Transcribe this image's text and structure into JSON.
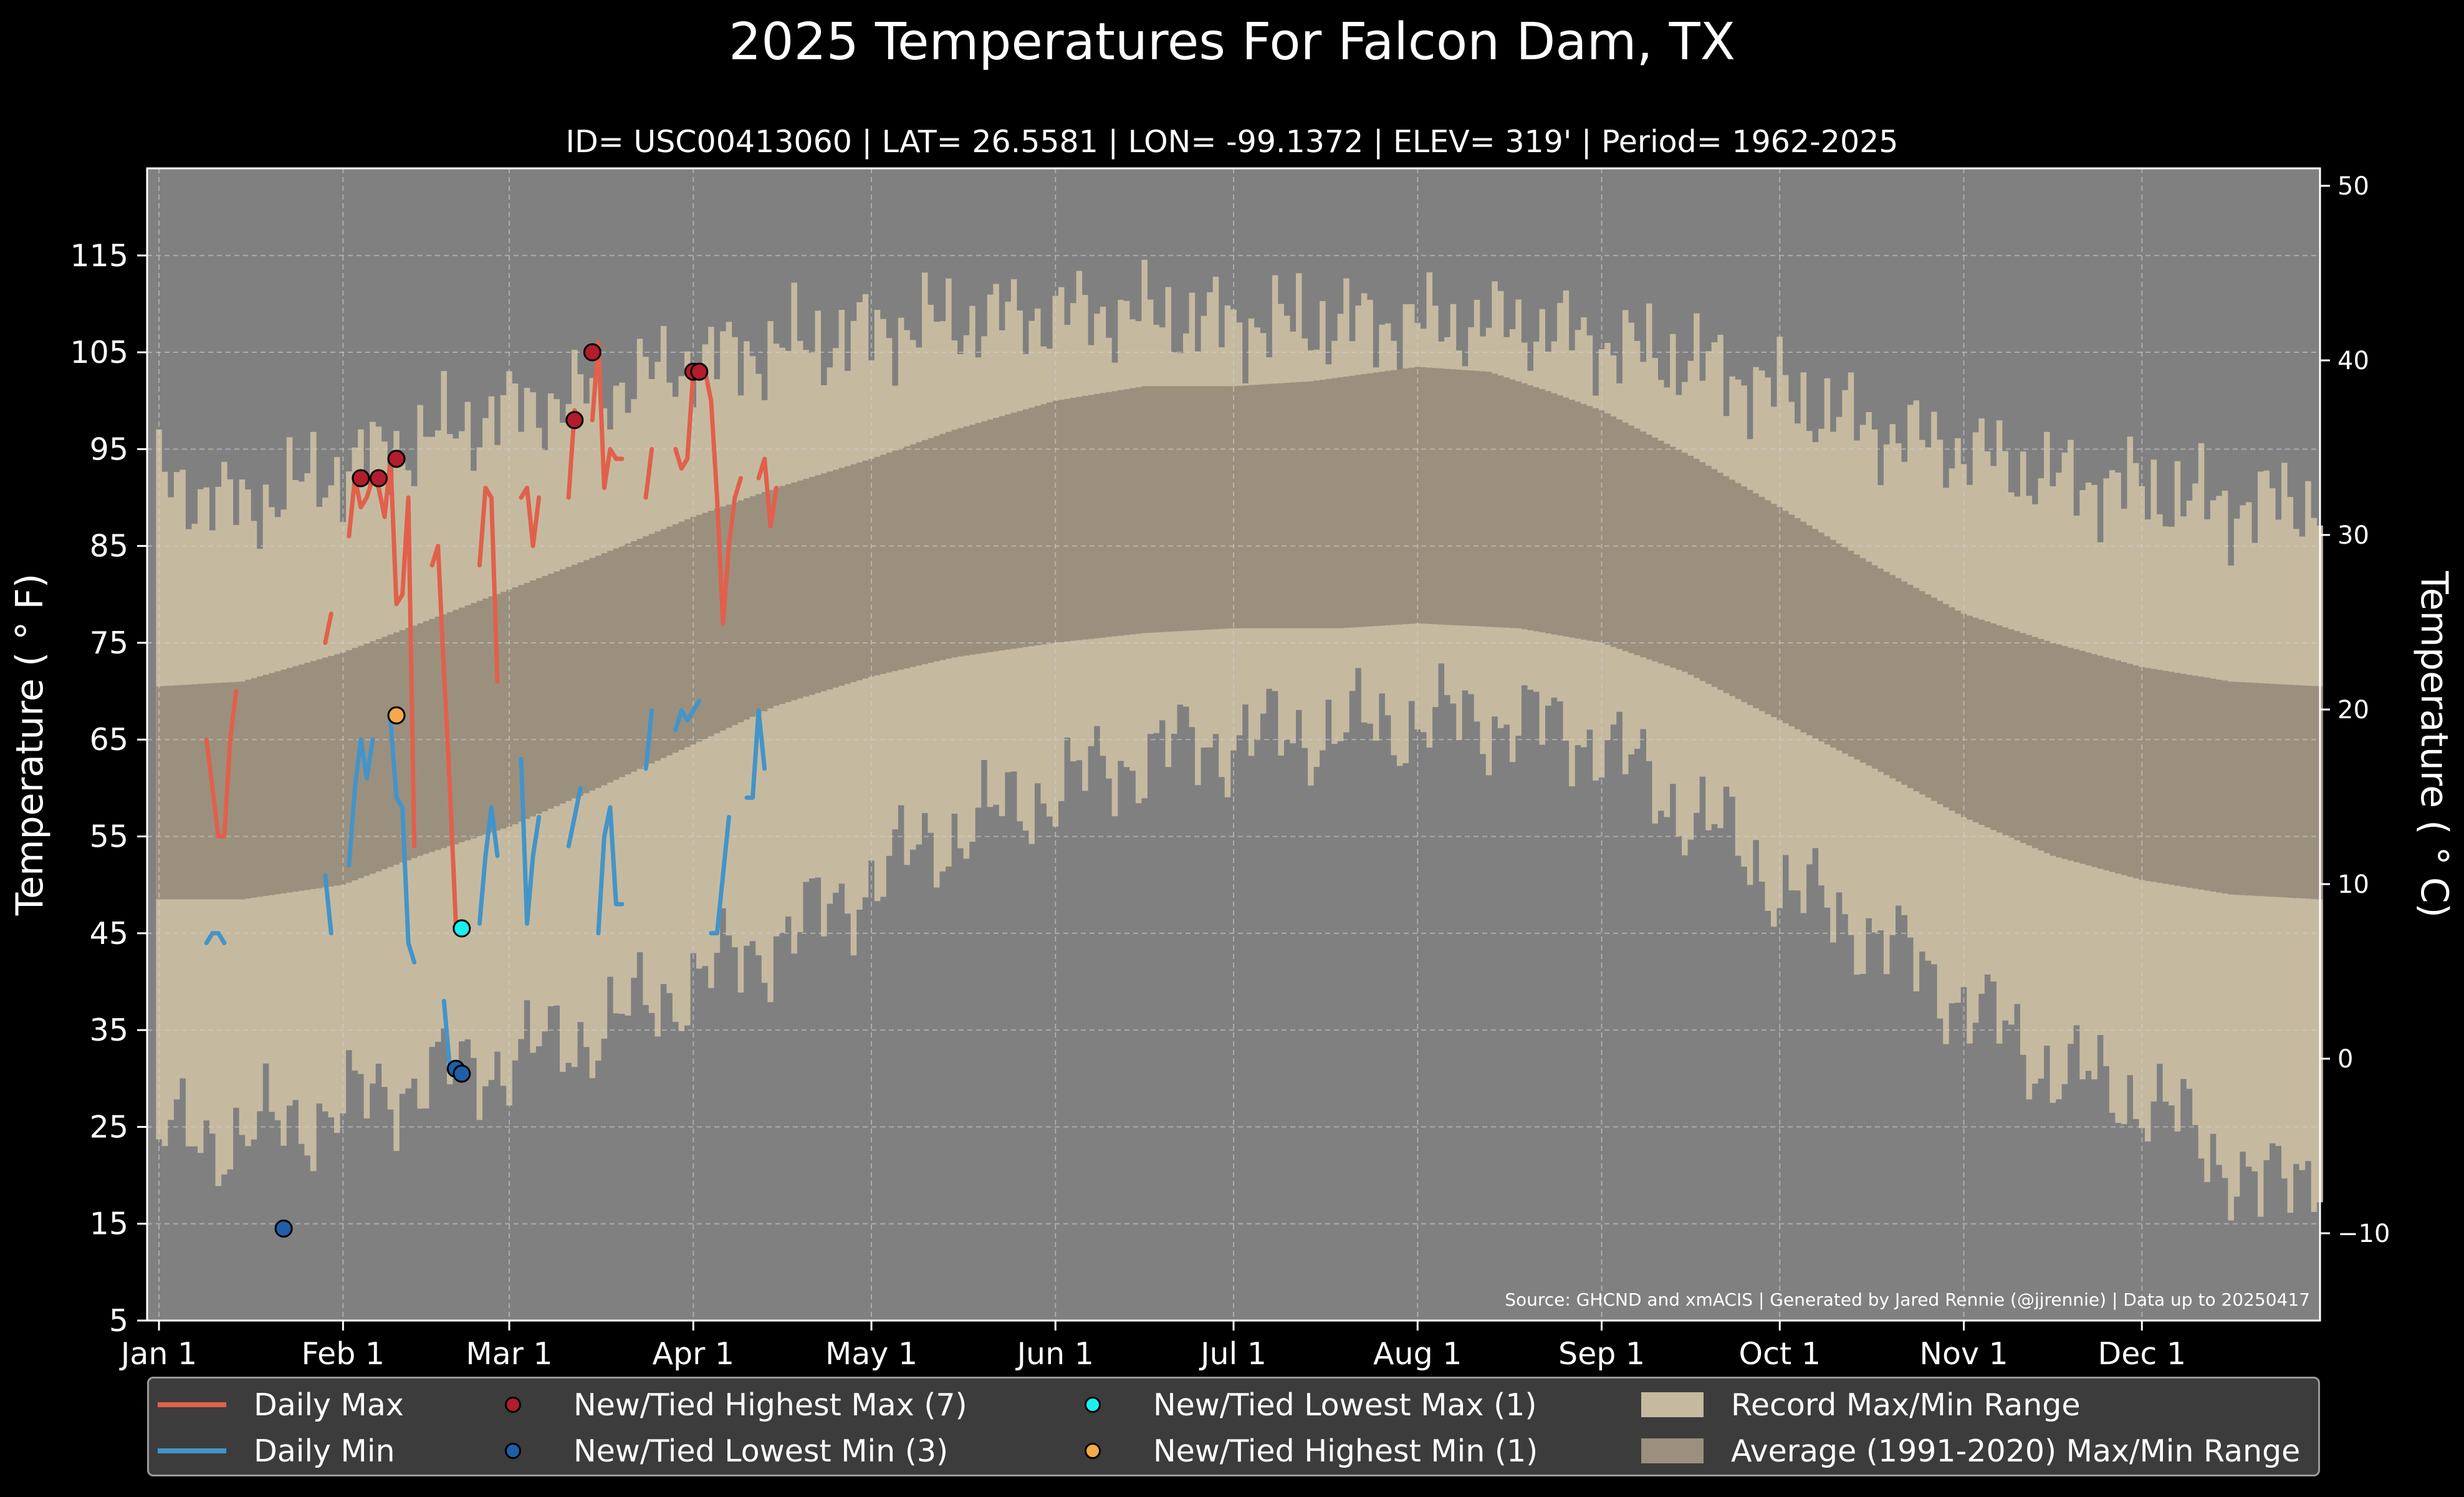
{
  "chart_data": {
    "type": "line",
    "title": "2025 Temperatures For Falcon Dam, TX",
    "subtitle": "ID= USC00413060 | LAT= 26.5581 | LON= -99.1372 | ELEV= 319' | Period= 1962-2025",
    "ylabel": "Temperature ( ° F)",
    "ylabel_right": "Temperature ( ° C)",
    "source": "Source: GHCND and xmACIS | Generated by Jared Rennie (@jjrennie) | Data up to 20250417",
    "ylim": [
      5,
      124
    ],
    "xlim_day_of_year": [
      -1,
      365
    ],
    "ylim_right_c": [
      -15,
      51
    ],
    "yticks_f": [
      5,
      15,
      25,
      35,
      45,
      55,
      65,
      75,
      85,
      95,
      105,
      115
    ],
    "yticks_c": [
      -10,
      0,
      10,
      20,
      30,
      40,
      50
    ],
    "xticks": [
      {
        "label": "Jan 1",
        "day": 1
      },
      {
        "label": "Feb 1",
        "day": 32
      },
      {
        "label": "Mar 1",
        "day": 60
      },
      {
        "label": "Apr 1",
        "day": 91
      },
      {
        "label": "May 1",
        "day": 121
      },
      {
        "label": "Jun 1",
        "day": 152
      },
      {
        "label": "Jul 1",
        "day": 182
      },
      {
        "label": "Aug 1",
        "day": 213
      },
      {
        "label": "Sep 1",
        "day": 244
      },
      {
        "label": "Oct 1",
        "day": 274
      },
      {
        "label": "Nov 1",
        "day": 305
      },
      {
        "label": "Dec 1",
        "day": 335
      }
    ],
    "grid": true,
    "legend_position": "bottom",
    "record_max_profile": [
      [
        1,
        92
      ],
      [
        15,
        89
      ],
      [
        32,
        93
      ],
      [
        45,
        96
      ],
      [
        60,
        99
      ],
      [
        75,
        101
      ],
      [
        91,
        104
      ],
      [
        110,
        106
      ],
      [
        130,
        108
      ],
      [
        152,
        109
      ],
      [
        165,
        109
      ],
      [
        182,
        108
      ],
      [
        200,
        108
      ],
      [
        213,
        108
      ],
      [
        230,
        108
      ],
      [
        244,
        106
      ],
      [
        260,
        104
      ],
      [
        274,
        101
      ],
      [
        290,
        97
      ],
      [
        305,
        95
      ],
      [
        320,
        92
      ],
      [
        335,
        91
      ],
      [
        350,
        89
      ],
      [
        365,
        90
      ]
    ],
    "record_min_profile": [
      [
        1,
        24
      ],
      [
        15,
        24
      ],
      [
        32,
        27
      ],
      [
        45,
        30
      ],
      [
        60,
        32
      ],
      [
        75,
        35
      ],
      [
        91,
        40
      ],
      [
        110,
        46
      ],
      [
        130,
        54
      ],
      [
        152,
        60
      ],
      [
        170,
        64
      ],
      [
        182,
        65
      ],
      [
        200,
        66
      ],
      [
        213,
        67
      ],
      [
        230,
        67
      ],
      [
        244,
        65
      ],
      [
        255,
        59
      ],
      [
        265,
        55
      ],
      [
        274,
        50
      ],
      [
        290,
        45
      ],
      [
        305,
        38
      ],
      [
        320,
        31
      ],
      [
        335,
        28
      ],
      [
        345,
        24
      ],
      [
        355,
        18
      ],
      [
        365,
        22
      ]
    ],
    "avg_max_profile": [
      [
        1,
        70.5
      ],
      [
        15,
        71
      ],
      [
        32,
        74
      ],
      [
        45,
        77
      ],
      [
        60,
        80.5
      ],
      [
        75,
        84
      ],
      [
        91,
        88
      ],
      [
        105,
        91
      ],
      [
        121,
        94
      ],
      [
        135,
        97
      ],
      [
        152,
        100
      ],
      [
        167,
        101.5
      ],
      [
        182,
        101.5
      ],
      [
        195,
        102
      ],
      [
        213,
        103.5
      ],
      [
        225,
        103
      ],
      [
        235,
        101
      ],
      [
        244,
        99
      ],
      [
        260,
        94
      ],
      [
        274,
        89
      ],
      [
        290,
        83
      ],
      [
        305,
        78
      ],
      [
        320,
        75
      ],
      [
        335,
        72.5
      ],
      [
        350,
        71
      ],
      [
        365,
        70.5
      ]
    ],
    "avg_min_profile": [
      [
        1,
        48.5
      ],
      [
        15,
        48.5
      ],
      [
        32,
        50
      ],
      [
        45,
        53
      ],
      [
        60,
        56
      ],
      [
        75,
        60
      ],
      [
        91,
        64.5
      ],
      [
        105,
        68.5
      ],
      [
        121,
        71.5
      ],
      [
        135,
        73.5
      ],
      [
        152,
        75
      ],
      [
        167,
        76
      ],
      [
        182,
        76.5
      ],
      [
        200,
        76.5
      ],
      [
        213,
        77
      ],
      [
        230,
        76.5
      ],
      [
        244,
        75
      ],
      [
        258,
        72
      ],
      [
        274,
        67
      ],
      [
        290,
        62
      ],
      [
        305,
        57
      ],
      [
        320,
        53
      ],
      [
        335,
        50.5
      ],
      [
        350,
        49
      ],
      [
        365,
        48.5
      ]
    ],
    "series": [
      {
        "name": "Daily Max",
        "color": "#e1604b",
        "points": [
          [
            9,
            65
          ],
          [
            10,
            60
          ],
          [
            11,
            55
          ],
          [
            12,
            55
          ],
          [
            13,
            65
          ],
          [
            14,
            70
          ],
          null,
          [
            20,
            null
          ],
          null,
          [
            29,
            75
          ],
          [
            30,
            78
          ],
          null,
          [
            33,
            86
          ],
          [
            34,
            92
          ],
          [
            35,
            89
          ],
          [
            36,
            90
          ],
          [
            37,
            92
          ],
          [
            38,
            91
          ],
          [
            39,
            88
          ],
          [
            40,
            94
          ],
          [
            41,
            79
          ],
          [
            42,
            80
          ],
          [
            43,
            90
          ],
          [
            44,
            54
          ],
          null,
          [
            47,
            83
          ],
          [
            48,
            85
          ],
          [
            49,
            72
          ],
          [
            50,
            60
          ],
          [
            51,
            46
          ],
          null,
          [
            55,
            83
          ],
          [
            56,
            91
          ],
          [
            57,
            90
          ],
          [
            58,
            71
          ],
          null,
          [
            62,
            90
          ],
          [
            63,
            91
          ],
          [
            64,
            85
          ],
          [
            65,
            90
          ],
          null,
          [
            70,
            90
          ],
          [
            71,
            99
          ],
          [
            72,
            98
          ],
          null,
          [
            74,
            98
          ],
          [
            75,
            106
          ],
          [
            76,
            91
          ],
          [
            77,
            95
          ],
          [
            78,
            94
          ],
          [
            79,
            94
          ],
          null,
          [
            83,
            90
          ],
          [
            84,
            95
          ],
          null,
          [
            88,
            95
          ],
          [
            89,
            93
          ],
          [
            90,
            94
          ],
          [
            91,
            103
          ],
          [
            92,
            103
          ],
          [
            93,
            103
          ],
          [
            94,
            100
          ],
          [
            95,
            90
          ],
          [
            96,
            77
          ],
          [
            97,
            85
          ],
          [
            98,
            90
          ],
          [
            99,
            92
          ],
          null,
          [
            102,
            92
          ],
          [
            103,
            94
          ],
          [
            104,
            87
          ],
          [
            105,
            91
          ]
        ]
      },
      {
        "name": "Daily Min",
        "color": "#4394c9",
        "points": [
          [
            9,
            44
          ],
          [
            10,
            45
          ],
          [
            11,
            45
          ],
          [
            12,
            44
          ],
          null,
          [
            29,
            51
          ],
          [
            30,
            45
          ],
          null,
          [
            33,
            52
          ],
          [
            34,
            60
          ],
          [
            35,
            65
          ],
          [
            36,
            61
          ],
          [
            37,
            65
          ],
          null,
          [
            40,
            67
          ],
          [
            41,
            59
          ],
          [
            42,
            58
          ],
          [
            43,
            44
          ],
          [
            44,
            42
          ],
          null,
          [
            49,
            38
          ],
          [
            50,
            31
          ],
          [
            51,
            30
          ],
          null,
          [
            55,
            46
          ],
          [
            56,
            53
          ],
          [
            57,
            58
          ],
          [
            58,
            53
          ],
          null,
          [
            62,
            63
          ],
          [
            63,
            46
          ],
          [
            64,
            53
          ],
          [
            65,
            57
          ],
          null,
          [
            70,
            54
          ],
          [
            71,
            57
          ],
          [
            72,
            60
          ],
          null,
          [
            75,
            45
          ],
          [
            76,
            55
          ],
          [
            77,
            58
          ],
          [
            78,
            48
          ],
          [
            79,
            48
          ],
          null,
          [
            83,
            62
          ],
          [
            84,
            68
          ],
          null,
          [
            88,
            66
          ],
          [
            89,
            68
          ],
          [
            90,
            67
          ],
          [
            91,
            68
          ],
          [
            92,
            69
          ],
          null,
          [
            94,
            45
          ],
          [
            95,
            45
          ],
          [
            96,
            51
          ],
          [
            97,
            57
          ],
          null,
          [
            100,
            59
          ],
          [
            101,
            59
          ],
          [
            102,
            68
          ],
          [
            103,
            62
          ]
        ]
      }
    ],
    "markers": [
      {
        "name": "New/Tied Highest Max (7)",
        "color": "#b21c2c",
        "points": [
          [
            35,
            92
          ],
          [
            38,
            92
          ],
          [
            41,
            94
          ],
          [
            71,
            98
          ],
          [
            74,
            105
          ],
          [
            91,
            103
          ],
          [
            92,
            103
          ]
        ]
      },
      {
        "name": "New/Tied Lowest Min (3)",
        "color": "#1f5fa8",
        "points": [
          [
            22,
            14.5
          ],
          [
            51,
            31
          ],
          [
            52,
            30.5
          ]
        ]
      },
      {
        "name": "New/Tied Lowest Max (1)",
        "color": "#18f0f0",
        "points": [
          [
            52,
            45.5
          ]
        ]
      },
      {
        "name": "New/Tied Highest Min (1)",
        "color": "#f7a84a",
        "points": [
          [
            41,
            67.5
          ]
        ]
      }
    ],
    "legend": {
      "daily_max": "Daily Max",
      "daily_min": "Daily Min",
      "highest_max": "New/Tied Highest Max (7)",
      "lowest_min": "New/Tied Lowest Min (3)",
      "lowest_max": "New/Tied Lowest Max (1)",
      "highest_min": "New/Tied Highest Min (1)",
      "record_range": "Record Max/Min Range",
      "average_range": "Average (1991-2020) Max/Min Range"
    },
    "colors": {
      "background": "#000000",
      "plot_background": "#808080",
      "record_range": "#c5baa0",
      "average_range": "#9b907e",
      "daily_max": "#e1604b",
      "daily_min": "#4394c9",
      "legend_background": "#3c3c3c"
    }
  }
}
